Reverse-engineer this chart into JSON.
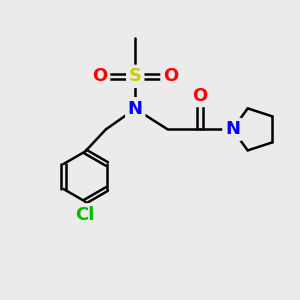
{
  "background_color": "#ebebeb",
  "atom_colors": {
    "N": "#0000ff",
    "O": "#ff0000",
    "S": "#cccc00",
    "Cl": "#00bb00",
    "C": "#000000"
  },
  "lw": 1.8,
  "fig_size": [
    3.0,
    3.0
  ],
  "dpi": 100,
  "fs": 13
}
